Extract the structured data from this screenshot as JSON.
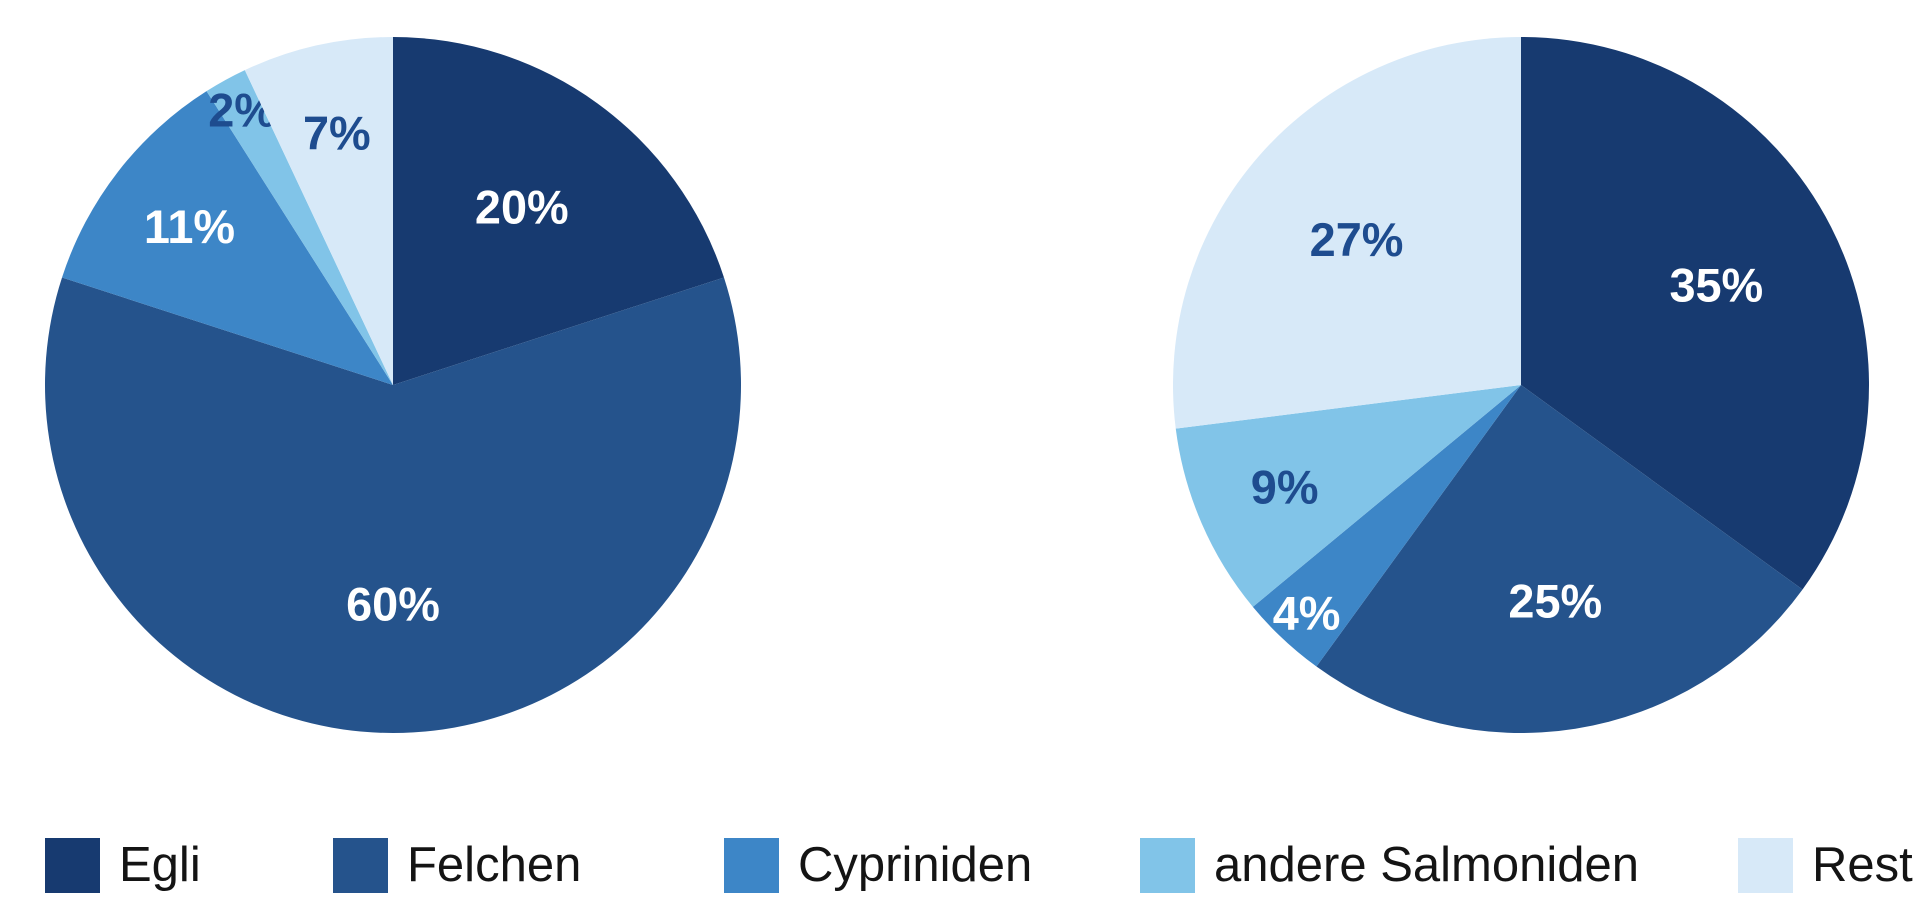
{
  "page": {
    "background": "#FFFFFF"
  },
  "palette": {
    "label_on_light_slices": "#1E4C8F",
    "label_on_dark_slices": "#FFFFFF",
    "legend_text": "#141414"
  },
  "chart_data": [
    {
      "type": "pie",
      "title": "",
      "categories": [
        "Egli",
        "Felchen",
        "Cypriniden",
        "andere Salmoniden",
        "Rest"
      ],
      "values": [
        20,
        60,
        11,
        2,
        7
      ],
      "unit": "%",
      "data_labels": [
        "20%",
        "60%",
        "11%",
        "2%",
        "7%"
      ],
      "colors": [
        "#173A70",
        "#25538C",
        "#3D86C7",
        "#81C4E8",
        "#D7E9F8"
      ],
      "start_angle_deg": 0,
      "direction": "clockwise",
      "legend_position": "bottom"
    },
    {
      "type": "pie",
      "title": "",
      "categories": [
        "Egli",
        "Felchen",
        "Cypriniden",
        "andere Salmoniden",
        "Rest"
      ],
      "values": [
        35,
        25,
        4,
        9,
        27
      ],
      "unit": "%",
      "data_labels": [
        "35%",
        "25%",
        "4%",
        "9%",
        "27%"
      ],
      "colors": [
        "#173A70",
        "#25538C",
        "#3D86C7",
        "#81C4E8",
        "#D7E9F8"
      ],
      "start_angle_deg": 0,
      "direction": "clockwise",
      "legend_position": "bottom"
    }
  ],
  "legend": {
    "items": [
      {
        "label": "Egli",
        "color": "#173A70"
      },
      {
        "label": "Felchen",
        "color": "#25538C"
      },
      {
        "label": "Cypriniden",
        "color": "#3D86C7"
      },
      {
        "label": "andere Salmoniden",
        "color": "#81C4E8"
      },
      {
        "label": "Rest",
        "color": "#D7E9F8"
      }
    ]
  }
}
